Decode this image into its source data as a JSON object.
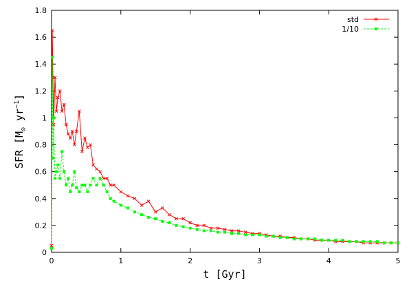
{
  "chart_data": {
    "type": "line",
    "title": "",
    "xlabel": "t  [Gyr]",
    "ylabel": "SFR  [M",
    "ylabel_sub": "⊙",
    "ylabel_tail": " yr",
    "ylabel_sup": "−1",
    "ylabel_close": "]",
    "xlim": [
      0,
      5
    ],
    "ylim": [
      0,
      1.8
    ],
    "xticks": [
      "0",
      "1",
      "2",
      "3",
      "4",
      "5"
    ],
    "yticks": [
      "0",
      "0.2",
      "0.4",
      "0.6",
      "0.8",
      "1",
      "1.2",
      "1.4",
      "1.6",
      "1.8"
    ],
    "grid": false,
    "legend_position": "top-right",
    "series": [
      {
        "name": "std",
        "color": "#ff0000",
        "marker": "x",
        "dash": "solid",
        "x": [
          0,
          0.01,
          0.02,
          0.03,
          0.05,
          0.07,
          0.09,
          0.12,
          0.15,
          0.18,
          0.21,
          0.24,
          0.27,
          0.3,
          0.33,
          0.36,
          0.4,
          0.44,
          0.48,
          0.52,
          0.56,
          0.6,
          0.65,
          0.7,
          0.75,
          0.8,
          0.85,
          0.9,
          1.0,
          1.1,
          1.2,
          1.3,
          1.4,
          1.5,
          1.6,
          1.7,
          1.8,
          1.9,
          2.0,
          2.1,
          2.2,
          2.3,
          2.4,
          2.5,
          2.6,
          2.7,
          2.8,
          2.9,
          3.0,
          3.1,
          3.2,
          3.3,
          3.4,
          3.5,
          3.6,
          3.7,
          3.8,
          3.9,
          4.0,
          4.1,
          4.2,
          4.3,
          4.4,
          4.5,
          4.6,
          4.7,
          4.8,
          4.9,
          5.0
        ],
        "y": [
          0.05,
          1.65,
          1.3,
          0.95,
          1.3,
          1.05,
          1.15,
          1.2,
          1.05,
          1.1,
          0.95,
          0.88,
          0.85,
          0.9,
          0.8,
          0.9,
          1.05,
          0.75,
          0.85,
          0.78,
          0.8,
          0.65,
          0.62,
          0.6,
          0.55,
          0.55,
          0.5,
          0.5,
          0.45,
          0.42,
          0.4,
          0.35,
          0.38,
          0.3,
          0.33,
          0.28,
          0.25,
          0.25,
          0.22,
          0.2,
          0.2,
          0.18,
          0.18,
          0.17,
          0.16,
          0.16,
          0.15,
          0.14,
          0.14,
          0.13,
          0.12,
          0.12,
          0.11,
          0.11,
          0.1,
          0.1,
          0.09,
          0.09,
          0.09,
          0.08,
          0.08,
          0.08,
          0.08,
          0.07,
          0.07,
          0.07,
          0.07,
          0.07,
          0.07
        ]
      },
      {
        "name": "1/10",
        "color": "#00ff00",
        "marker": "square",
        "dash": "dashed",
        "x": [
          0,
          0.01,
          0.02,
          0.03,
          0.05,
          0.07,
          0.09,
          0.12,
          0.15,
          0.18,
          0.21,
          0.24,
          0.27,
          0.3,
          0.33,
          0.36,
          0.4,
          0.44,
          0.48,
          0.52,
          0.56,
          0.6,
          0.65,
          0.7,
          0.75,
          0.8,
          0.85,
          0.9,
          1.0,
          1.1,
          1.2,
          1.3,
          1.4,
          1.5,
          1.6,
          1.7,
          1.8,
          1.9,
          2.0,
          2.1,
          2.2,
          2.3,
          2.4,
          2.5,
          2.6,
          2.7,
          2.8,
          2.9,
          3.0,
          3.1,
          3.2,
          3.3,
          3.4,
          3.5,
          3.6,
          3.7,
          3.8,
          3.9,
          4.0,
          4.1,
          4.2,
          4.3,
          4.4,
          4.5,
          4.6,
          4.7,
          4.8,
          4.9,
          5.0
        ],
        "y": [
          0.03,
          1.45,
          0.7,
          1.0,
          0.55,
          0.6,
          0.65,
          0.55,
          0.75,
          0.6,
          0.5,
          0.55,
          0.45,
          0.5,
          0.6,
          0.48,
          0.45,
          0.5,
          0.5,
          0.45,
          0.5,
          0.55,
          0.5,
          0.55,
          0.5,
          0.45,
          0.4,
          0.38,
          0.35,
          0.33,
          0.3,
          0.28,
          0.26,
          0.25,
          0.23,
          0.22,
          0.2,
          0.19,
          0.18,
          0.17,
          0.16,
          0.16,
          0.15,
          0.15,
          0.14,
          0.14,
          0.13,
          0.13,
          0.13,
          0.12,
          0.12,
          0.11,
          0.11,
          0.1,
          0.1,
          0.1,
          0.1,
          0.09,
          0.09,
          0.09,
          0.09,
          0.08,
          0.08,
          0.08,
          0.08,
          0.08,
          0.07,
          0.07,
          0.07
        ]
      }
    ]
  }
}
